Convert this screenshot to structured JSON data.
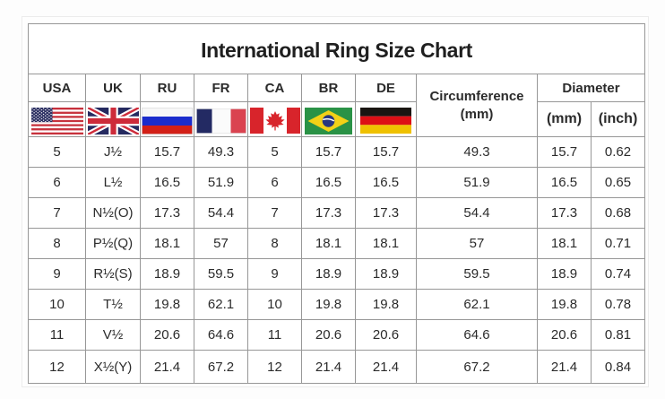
{
  "title": "International Ring Size Chart",
  "table": {
    "columns": [
      {
        "key": "usa",
        "label": "USA",
        "flag": "usa-flag"
      },
      {
        "key": "uk",
        "label": "UK",
        "flag": "uk-flag"
      },
      {
        "key": "ru",
        "label": "RU",
        "flag": "russia-flag"
      },
      {
        "key": "fr",
        "label": "FR",
        "flag": "france-flag"
      },
      {
        "key": "ca",
        "label": "CA",
        "flag": "canada-flag"
      },
      {
        "key": "br",
        "label": "BR",
        "flag": "brazil-flag"
      },
      {
        "key": "de",
        "label": "DE",
        "flag": "germany-flag"
      }
    ],
    "circumference_label": "Circumference",
    "circumference_unit": "(mm)",
    "diameter_label": "Diameter",
    "diameter_mm_label": "(mm)",
    "diameter_inch_label": "(inch)",
    "rows": [
      {
        "usa": "5",
        "uk": "J½",
        "ru": "15.7",
        "fr": "49.3",
        "ca": "5",
        "br": "15.7",
        "de": "15.7",
        "circumference_mm": "49.3",
        "diameter_mm": "15.7",
        "diameter_inch": "0.62"
      },
      {
        "usa": "6",
        "uk": "L½",
        "ru": "16.5",
        "fr": "51.9",
        "ca": "6",
        "br": "16.5",
        "de": "16.5",
        "circumference_mm": "51.9",
        "diameter_mm": "16.5",
        "diameter_inch": "0.65"
      },
      {
        "usa": "7",
        "uk": "N½(O)",
        "ru": "17.3",
        "fr": "54.4",
        "ca": "7",
        "br": "17.3",
        "de": "17.3",
        "circumference_mm": "54.4",
        "diameter_mm": "17.3",
        "diameter_inch": "0.68"
      },
      {
        "usa": "8",
        "uk": "P½(Q)",
        "ru": "18.1",
        "fr": "57",
        "ca": "8",
        "br": "18.1",
        "de": "18.1",
        "circumference_mm": "57",
        "diameter_mm": "18.1",
        "diameter_inch": "0.71"
      },
      {
        "usa": "9",
        "uk": "R½(S)",
        "ru": "18.9",
        "fr": "59.5",
        "ca": "9",
        "br": "18.9",
        "de": "18.9",
        "circumference_mm": "59.5",
        "diameter_mm": "18.9",
        "diameter_inch": "0.74"
      },
      {
        "usa": "10",
        "uk": "T½",
        "ru": "19.8",
        "fr": "62.1",
        "ca": "10",
        "br": "19.8",
        "de": "19.8",
        "circumference_mm": "62.1",
        "diameter_mm": "19.8",
        "diameter_inch": "0.78"
      },
      {
        "usa": "11",
        "uk": "V½",
        "ru": "20.6",
        "fr": "64.6",
        "ca": "11",
        "br": "20.6",
        "de": "20.6",
        "circumference_mm": "64.6",
        "diameter_mm": "20.6",
        "diameter_inch": "0.81"
      },
      {
        "usa": "12",
        "uk": "X½(Y)",
        "ru": "21.4",
        "fr": "67.2",
        "ca": "12",
        "br": "21.4",
        "de": "21.4",
        "circumference_mm": "67.2",
        "diameter_mm": "21.4",
        "diameter_inch": "0.84"
      }
    ]
  },
  "colors": {
    "table_border": "#979797",
    "outer_border": "#8f8f8f",
    "text": "#2b2b2b",
    "background": "#fdfdfd"
  },
  "chart_data": {
    "type": "table",
    "title": "International Ring Size Chart",
    "columns": [
      "USA",
      "UK",
      "RU",
      "FR",
      "CA",
      "BR",
      "DE",
      "Circumference (mm)",
      "Diameter (mm)",
      "Diameter (inch)"
    ],
    "rows": [
      [
        "5",
        "J½",
        "15.7",
        "49.3",
        "5",
        "15.7",
        "15.7",
        "49.3",
        "15.7",
        "0.62"
      ],
      [
        "6",
        "L½",
        "16.5",
        "51.9",
        "6",
        "16.5",
        "16.5",
        "51.9",
        "16.5",
        "0.65"
      ],
      [
        "7",
        "N½(O)",
        "17.3",
        "54.4",
        "7",
        "17.3",
        "17.3",
        "54.4",
        "17.3",
        "0.68"
      ],
      [
        "8",
        "P½(Q)",
        "18.1",
        "57",
        "8",
        "18.1",
        "18.1",
        "57",
        "18.1",
        "0.71"
      ],
      [
        "9",
        "R½(S)",
        "18.9",
        "59.5",
        "9",
        "18.9",
        "18.9",
        "59.5",
        "18.9",
        "0.74"
      ],
      [
        "10",
        "T½",
        "19.8",
        "62.1",
        "10",
        "19.8",
        "19.8",
        "62.1",
        "19.8",
        "0.78"
      ],
      [
        "11",
        "V½",
        "20.6",
        "64.6",
        "11",
        "20.6",
        "20.6",
        "64.6",
        "20.6",
        "0.81"
      ],
      [
        "12",
        "X½(Y)",
        "21.4",
        "67.2",
        "12",
        "21.4",
        "21.4",
        "67.2",
        "21.4",
        "0.84"
      ]
    ]
  }
}
